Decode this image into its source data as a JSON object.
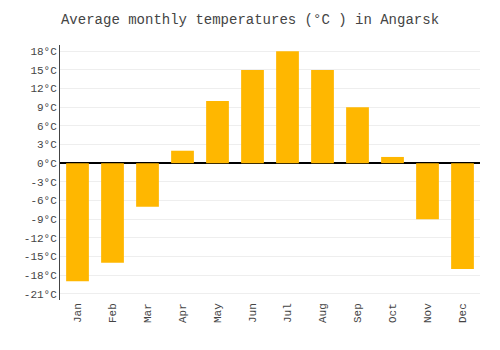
{
  "chart_data": {
    "type": "bar",
    "title": "Average monthly temperatures (°C ) in Angarsk",
    "categories": [
      "Jan",
      "Feb",
      "Mar",
      "Apr",
      "May",
      "Jun",
      "Jul",
      "Aug",
      "Sep",
      "Oct",
      "Nov",
      "Dec"
    ],
    "values": [
      -19,
      -16,
      -7,
      2,
      10,
      15,
      18,
      15,
      9,
      1,
      -9,
      -17
    ],
    "color": "#FFB700",
    "ylim": [
      -22,
      19
    ],
    "yticks": [
      {
        "value": -21,
        "label": "-21°C"
      },
      {
        "value": -18,
        "label": "-18°C"
      },
      {
        "value": -15,
        "label": "-15°C"
      },
      {
        "value": -12,
        "label": "-12°C"
      },
      {
        "value": -9,
        "label": "-9°C"
      },
      {
        "value": -6,
        "label": "-6°C"
      },
      {
        "value": -3,
        "label": "-3°C"
      },
      {
        "value": 0,
        "label": "0°C"
      },
      {
        "value": 3,
        "label": "3°C"
      },
      {
        "value": 6,
        "label": "6°C"
      },
      {
        "value": 9,
        "label": "9°C"
      },
      {
        "value": 12,
        "label": "12°C"
      },
      {
        "value": 15,
        "label": "15°C"
      },
      {
        "value": 18,
        "label": "18°C"
      }
    ],
    "grid": true
  }
}
